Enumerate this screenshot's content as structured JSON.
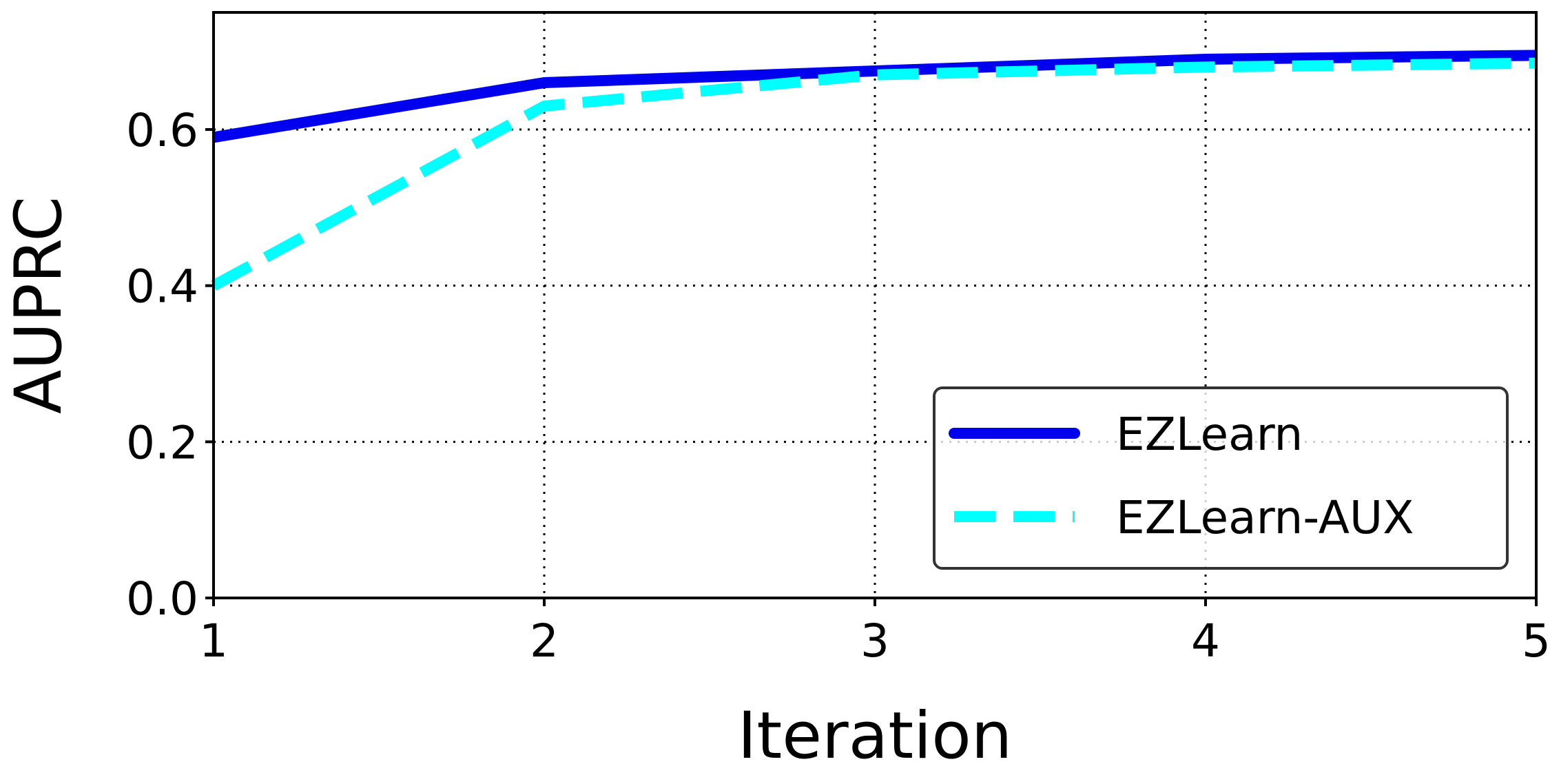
{
  "chart_data": {
    "type": "line",
    "title": "",
    "xlabel": "Iteration",
    "ylabel": "AUPRC",
    "x": [
      1,
      2,
      3,
      4,
      5
    ],
    "xticks": [
      "1",
      "2",
      "3",
      "4",
      "5"
    ],
    "yticks": [
      "0.0",
      "0.2",
      "0.4",
      "0.6"
    ],
    "xlim": [
      1,
      5
    ],
    "ylim": [
      0,
      0.75
    ],
    "grid": true,
    "grid_style": "dotted",
    "legend_position": "lower-right",
    "series": [
      {
        "name": "EZLearn",
        "values": [
          0.59,
          0.66,
          0.675,
          0.69,
          0.695
        ],
        "color": "#0000ee",
        "style": "solid"
      },
      {
        "name": "EZLearn-AUX",
        "values": [
          0.4,
          0.63,
          0.67,
          0.68,
          0.685
        ],
        "color": "#00ffff",
        "style": "dashed"
      }
    ]
  }
}
